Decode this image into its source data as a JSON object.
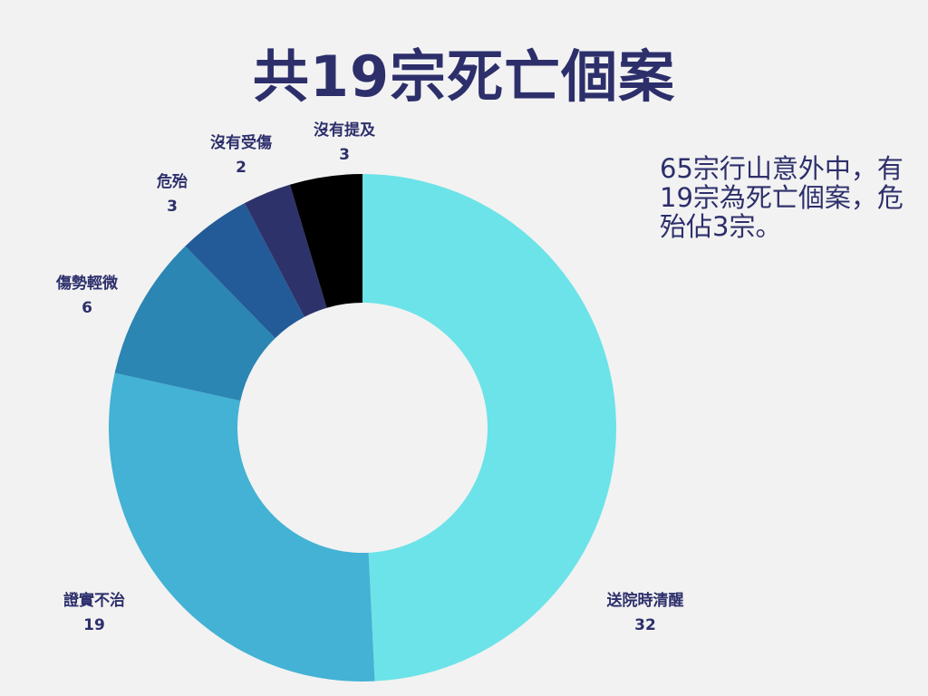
{
  "title": "共19宗死亡個案",
  "note": "65宗行山意外中，有19宗為死亡個案，危殆佔3宗。",
  "chart_data": {
    "type": "pie",
    "donut": true,
    "start_angle_deg": 0,
    "direction": "clockwise",
    "legend": "none",
    "slices": [
      {
        "label": "送院時清醒",
        "value": 32,
        "color": "#6ce3e8"
      },
      {
        "label": "證實不治",
        "value": 19,
        "color": "#43b2d4"
      },
      {
        "label": "傷勢輕微",
        "value": 6,
        "color": "#2b86b3"
      },
      {
        "label": "危殆",
        "value": 3,
        "color": "#235b98"
      },
      {
        "label": "沒有受傷",
        "value": 2,
        "color": "#2d336a"
      },
      {
        "label": "沒有提及",
        "value": 3,
        "color": "#000000"
      }
    ]
  }
}
